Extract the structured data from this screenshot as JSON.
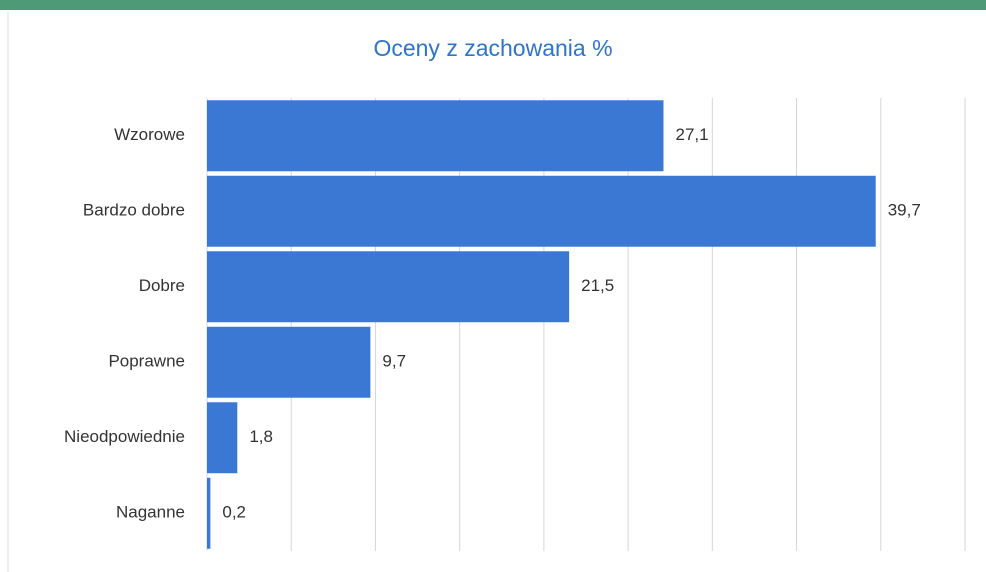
{
  "chart_data": {
    "type": "bar",
    "orientation": "horizontal",
    "title": "Oceny z zachowania %",
    "categories": [
      "Wzorowe",
      "Bardzo dobre",
      "Dobre",
      "Poprawne",
      "Nieodpowiednie",
      "Naganne"
    ],
    "values": [
      27.1,
      39.7,
      21.5,
      9.7,
      1.8,
      0.2
    ],
    "value_labels": [
      "27,1",
      "39,7",
      "21,5",
      "9,7",
      "1,8",
      "0,2"
    ],
    "color": "#3a78d4",
    "xlim": [
      0,
      45
    ],
    "xticks": [
      0,
      5,
      10,
      15,
      20,
      25,
      30,
      35,
      40,
      45
    ],
    "grid": true
  }
}
